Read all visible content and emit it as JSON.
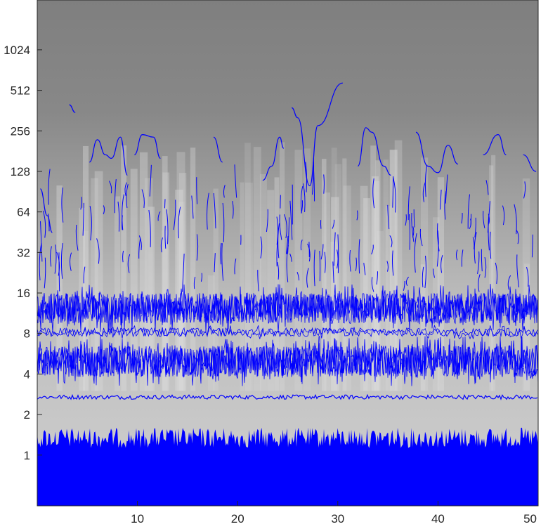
{
  "chart_data": {
    "type": "heatmap",
    "title": "",
    "xlabel": "",
    "ylabel": "",
    "xlim": [
      0,
      50
    ],
    "ylim": [
      0.42,
      2400
    ],
    "y_scale": "log2",
    "grid": false,
    "x_ticks": [
      "10",
      "20",
      "30",
      "40",
      "50"
    ],
    "y_ticks": [
      "1",
      "2",
      "4",
      "8",
      "16",
      "32",
      "64",
      "128",
      "256",
      "512",
      "1024"
    ],
    "background": {
      "description_colormap": "grayscale",
      "low_period_shade": "#c4c4c4",
      "high_period_shade": "#7f7f7f"
    },
    "ridge_color": "#0000ff",
    "ridge_bands": [
      {
        "name": "",
        "period_low": 0.42,
        "period_high": 1.6,
        "density": "solid"
      },
      {
        "name": "",
        "period_low": 2.6,
        "period_high": 2.8,
        "density": "thin-line"
      },
      {
        "name": "",
        "period_low": 3.8,
        "period_high": 6.5,
        "density": "dense"
      },
      {
        "name": "",
        "period_low": 7.6,
        "period_high": 8.8,
        "density": "medium"
      },
      {
        "name": "",
        "period_low": 9.5,
        "period_high": 16,
        "density": "dense"
      }
    ],
    "ridge_curves": [
      {
        "x": [
          3.2,
          3.8
        ],
        "y": [
          400,
          350
        ]
      },
      {
        "x": [
          0.3,
          1.0,
          1.5
        ],
        "y": [
          95,
          60,
          45
        ]
      },
      {
        "x": [
          5.2,
          6.0,
          6.8,
          7.4,
          8.3,
          9.0
        ],
        "y": [
          150,
          220,
          170,
          160,
          230,
          120
        ]
      },
      {
        "x": [
          9.7,
          10.5,
          11.6,
          12.3
        ],
        "y": [
          170,
          240,
          230,
          160
        ]
      },
      {
        "x": [
          17.6,
          18.5
        ],
        "y": [
          230,
          150
        ]
      },
      {
        "x": [
          22.5,
          23.4,
          24.2,
          24.6
        ],
        "y": [
          110,
          140,
          230,
          190
        ]
      },
      {
        "x": [
          25.4,
          26.0,
          27.2,
          28.0,
          30.5
        ],
        "y": [
          380,
          320,
          100,
          280,
          580
        ]
      },
      {
        "x": [
          32.0,
          32.8,
          33.4,
          34.6,
          35.3
        ],
        "y": [
          140,
          270,
          250,
          140,
          120
        ]
      },
      {
        "x": [
          37.8,
          39.0,
          40.0,
          41.0,
          42.0
        ],
        "y": [
          250,
          140,
          125,
          200,
          145
        ]
      },
      {
        "x": [
          44.5,
          46.0,
          46.8
        ],
        "y": [
          170,
          240,
          170
        ]
      },
      {
        "x": [
          48.5,
          49.8
        ],
        "y": [
          170,
          128
        ]
      }
    ]
  }
}
